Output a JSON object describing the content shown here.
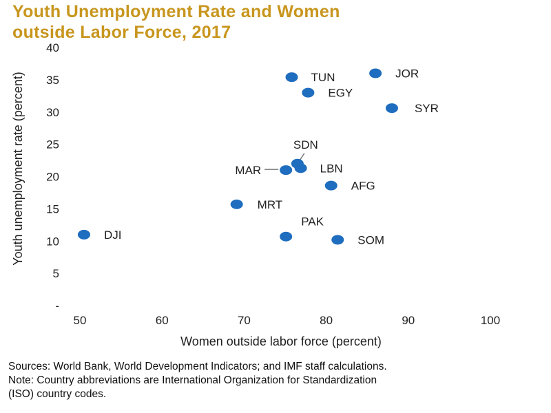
{
  "title_lines": [
    "Youth Unemployment  Rate and Women",
    "outside  Labor Force, 2017"
  ],
  "notes": [
    "Sources: World Bank, World Development Indicators; and IMF staff calculations.",
    "Note: Country abbreviations are International Organization for Standardization",
    "(ISO) country codes."
  ],
  "colors": {
    "title": "#c8961e",
    "point": "#1f6dbf",
    "axis": "#222222"
  },
  "chart_data": {
    "type": "scatter",
    "title": "Youth Unemployment  Rate and Women outside  Labor Force, 2017",
    "xlabel": "Women outside labor force (percent)",
    "ylabel": "Youth unemployment  rate (percent)",
    "xlim": [
      50,
      100
    ],
    "ylim": [
      0,
      40
    ],
    "xticks": [
      50,
      60,
      70,
      80,
      90,
      100
    ],
    "yticks": [
      0,
      5,
      10,
      15,
      20,
      25,
      30,
      35,
      40
    ],
    "ytick_labels": [
      "-",
      "5",
      "10",
      "15",
      "20",
      "25",
      "30",
      "35",
      "40"
    ],
    "grid": false,
    "points": [
      {
        "label": "TUN",
        "x": 75.8,
        "y": 35.4
      },
      {
        "label": "JOR",
        "x": 86.0,
        "y": 36.0
      },
      {
        "label": "EGY",
        "x": 77.8,
        "y": 33.0
      },
      {
        "label": "SYR",
        "x": 88.0,
        "y": 30.6
      },
      {
        "label": "SDN",
        "x": 76.5,
        "y": 22.0
      },
      {
        "label": "LBN",
        "x": 76.9,
        "y": 21.3
      },
      {
        "label": "MAR",
        "x": 75.1,
        "y": 21.0
      },
      {
        "label": "AFG",
        "x": 80.6,
        "y": 18.6
      },
      {
        "label": "MRT",
        "x": 69.1,
        "y": 15.7
      },
      {
        "label": "DJI",
        "x": 50.5,
        "y": 11.0
      },
      {
        "label": "PAK",
        "x": 75.1,
        "y": 10.7
      },
      {
        "label": "SOM",
        "x": 81.4,
        "y": 10.2
      }
    ]
  }
}
